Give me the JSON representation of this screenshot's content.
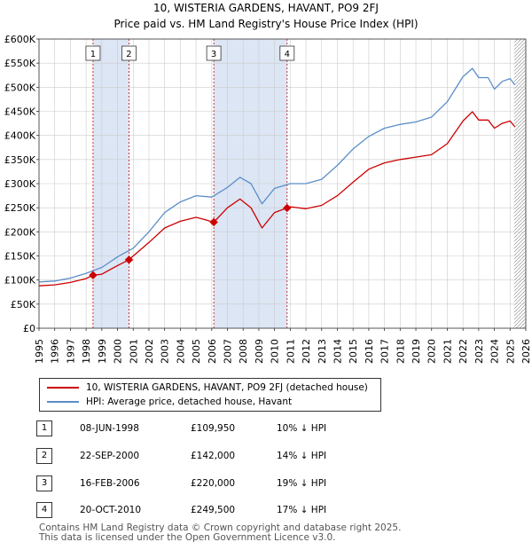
{
  "title_line1": "10, WISTERIA GARDENS, HAVANT, PO9 2FJ",
  "title_line2": "Price paid vs. HM Land Registry's House Price Index (HPI)",
  "colors": {
    "price_paid": "#cc0000",
    "hpi": "#5b8ec9",
    "shade": "#dce6f5",
    "grid": "#cccccc"
  },
  "chart_data": {
    "type": "line",
    "title": "Price paid vs. HM Land Registry's House Price Index (HPI)",
    "xlabel": "",
    "ylabel": "",
    "xlim": [
      1995,
      2026
    ],
    "ylim": [
      0,
      600000
    ],
    "y_ticks": [
      0,
      50000,
      100000,
      150000,
      200000,
      250000,
      300000,
      350000,
      400000,
      450000,
      500000,
      550000,
      600000
    ],
    "y_tick_labels": [
      "£0",
      "£50K",
      "£100K",
      "£150K",
      "£200K",
      "£250K",
      "£300K",
      "£350K",
      "£400K",
      "£450K",
      "£500K",
      "£550K",
      "£600K"
    ],
    "x_ticks": [
      1995,
      1996,
      1997,
      1998,
      1999,
      2000,
      2001,
      2002,
      2003,
      2004,
      2005,
      2006,
      2007,
      2008,
      2009,
      2010,
      2011,
      2012,
      2013,
      2014,
      2015,
      2016,
      2017,
      2018,
      2019,
      2020,
      2021,
      2022,
      2023,
      2024,
      2025,
      2026
    ],
    "x_tick_labels": [
      "1995",
      "1996",
      "1997",
      "1998",
      "1999",
      "2000",
      "2001",
      "2002",
      "2003",
      "2004",
      "2005",
      "2006",
      "2007",
      "2008",
      "2009",
      "2010",
      "2011",
      "2012",
      "2013",
      "2014",
      "2015",
      "2016",
      "2017",
      "2018",
      "2019",
      "2020",
      "2021",
      "2022",
      "2023",
      "2024",
      "2025",
      "2026"
    ],
    "shaded_ranges": [
      [
        1998.44,
        2000.73
      ],
      [
        2006.13,
        2010.8
      ]
    ],
    "hatch_from": 2025.25,
    "transactions": [
      {
        "label": "1",
        "x": 1998.44,
        "price": 109950
      },
      {
        "label": "2",
        "x": 2000.73,
        "price": 142000
      },
      {
        "label": "3",
        "x": 2006.13,
        "price": 220000
      },
      {
        "label": "4",
        "x": 2010.8,
        "price": 249500
      }
    ],
    "series": [
      {
        "name": "10, WISTERIA GARDENS, HAVANT, PO9 2FJ (detached house)",
        "x": [
          1995,
          1996,
          1997,
          1998,
          1998.44,
          1999,
          2000,
          2000.73,
          2001,
          2002,
          2003,
          2004,
          2005,
          2005.5,
          2006.13,
          2007,
          2007.8,
          2008.5,
          2009.2,
          2010,
          2010.8,
          2011,
          2012,
          2013,
          2014,
          2015,
          2016,
          2017,
          2018,
          2019,
          2020,
          2021,
          2022,
          2022.6,
          2023,
          2023.6,
          2024,
          2024.5,
          2025,
          2025.3
        ],
        "values": [
          88000,
          90000,
          95000,
          103000,
          109950,
          112000,
          130000,
          142000,
          150000,
          178000,
          208000,
          222000,
          230000,
          226000,
          220000,
          250000,
          268000,
          250000,
          208000,
          240000,
          249500,
          252000,
          248000,
          255000,
          275000,
          303000,
          330000,
          343000,
          350000,
          355000,
          360000,
          383000,
          430000,
          449000,
          432000,
          432000,
          415000,
          425000,
          430000,
          418000
        ]
      },
      {
        "name": "HPI: Average price, detached house, Havant",
        "x": [
          1995,
          1996,
          1997,
          1998,
          1999,
          2000,
          2001,
          2002,
          2003,
          2004,
          2005,
          2006,
          2007,
          2007.8,
          2008.5,
          2009.2,
          2010,
          2011,
          2012,
          2013,
          2014,
          2015,
          2016,
          2017,
          2018,
          2019,
          2020,
          2021,
          2022,
          2022.6,
          2023,
          2023.6,
          2024,
          2024.5,
          2025,
          2025.3
        ],
        "values": [
          96000,
          98000,
          104000,
          114000,
          126000,
          148000,
          166000,
          200000,
          240000,
          262000,
          275000,
          272000,
          292000,
          313000,
          300000,
          258000,
          290000,
          300000,
          300000,
          309000,
          338000,
          372000,
          398000,
          415000,
          423000,
          428000,
          438000,
          470000,
          522000,
          539000,
          520000,
          520000,
          496000,
          512000,
          518000,
          505000
        ]
      }
    ]
  },
  "legend": {
    "price_label": "10, WISTERIA GARDENS, HAVANT, PO9 2FJ (detached house)",
    "hpi_label": "HPI: Average price, detached house, Havant"
  },
  "table": [
    {
      "num": "1",
      "date": "08-JUN-1998",
      "price": "£109,950",
      "hpi": "10% ↓ HPI"
    },
    {
      "num": "2",
      "date": "22-SEP-2000",
      "price": "£142,000",
      "hpi": "14% ↓ HPI"
    },
    {
      "num": "3",
      "date": "16-FEB-2006",
      "price": "£220,000",
      "hpi": "19% ↓ HPI"
    },
    {
      "num": "4",
      "date": "20-OCT-2010",
      "price": "£249,500",
      "hpi": "17% ↓ HPI"
    }
  ],
  "footer_line1": "Contains HM Land Registry data © Crown copyright and database right 2025.",
  "footer_line2": "This data is licensed under the Open Government Licence v3.0."
}
